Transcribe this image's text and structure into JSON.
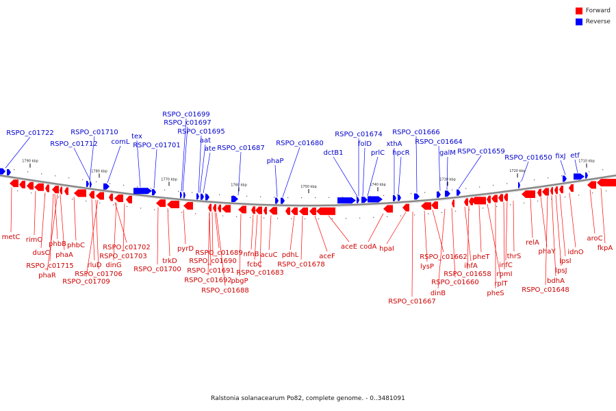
{
  "caption": "Ralstonia solanacearum Po82, complete genome. - 0..3481091",
  "legend": [
    {
      "label": "Forward",
      "color": "#ff0000"
    },
    {
      "label": "Reverse",
      "color": "#0000ff"
    }
  ],
  "colors": {
    "forward": "#ff0000",
    "reverse": "#0000ff",
    "axis": "#888888",
    "forward_label": "#cc0000",
    "reverse_label": "#0000cc"
  },
  "ticks": [
    {
      "label": "1790 kbp"
    },
    {
      "label": "1780 kbp"
    },
    {
      "label": "1770 kbp"
    },
    {
      "label": "1760 kbp"
    },
    {
      "label": "1750 kbp"
    },
    {
      "label": "1740 kbp"
    },
    {
      "label": "1730 kbp"
    },
    {
      "label": "1720 kbp"
    },
    {
      "label": "1710 kbp"
    }
  ],
  "reverse_labels": [
    "RSPO_c01722",
    "RSPO_c01712",
    "RSPO_c01710",
    "comL",
    "tex",
    "RSPO_c01701",
    "RSPO_c01699",
    "RSPO_c01697",
    "RSPO_c01695",
    "aat",
    "ate",
    "RSPO_c01687",
    "phaP",
    "RSPO_c01680",
    "dctB1",
    "RSPO_c01674",
    "folD",
    "prlC",
    "xthA",
    "hpcR",
    "RSPO_c01666",
    "RSPO_c01664",
    "galM",
    "RSPO_c01659",
    "RSPO_c01650",
    "fixJ",
    "etf"
  ],
  "forward_labels": [
    "metC",
    "rimO",
    "dusC",
    "phbB",
    "phbC",
    "RSPO_c01715",
    "phaA",
    "phaR",
    "rluD",
    "RSPO_c01706",
    "RSPO_c01709",
    "dinG",
    "RSPO_c01702",
    "RSPO_c01703",
    "RSPO_c01700",
    "trkD",
    "pyrD",
    "RSPO_c01689",
    "RSPO_c01690",
    "RSPO_c01691",
    "RSPO_c01692",
    "RSPO_c01688",
    "pbgP",
    "nfnB",
    "fcbC",
    "RSPO_c01683",
    "acuC",
    "pdhL",
    "RSPO_c01678",
    "aceF",
    "aceE",
    "codA",
    "hpaI",
    "RSPO_c01667",
    "lysP",
    "RSPO_c01662",
    "dinB",
    "RSPO_c01660",
    "ihfA",
    "RSPO_c01658",
    "pheT",
    "rplT",
    "pheS",
    "rpmI",
    "infC",
    "thrS",
    "relA",
    "phaY",
    "RSPO_c01648",
    "bdhA",
    "lpsJ",
    "lpsI",
    "idnO",
    "aroC",
    "fkpA"
  ]
}
